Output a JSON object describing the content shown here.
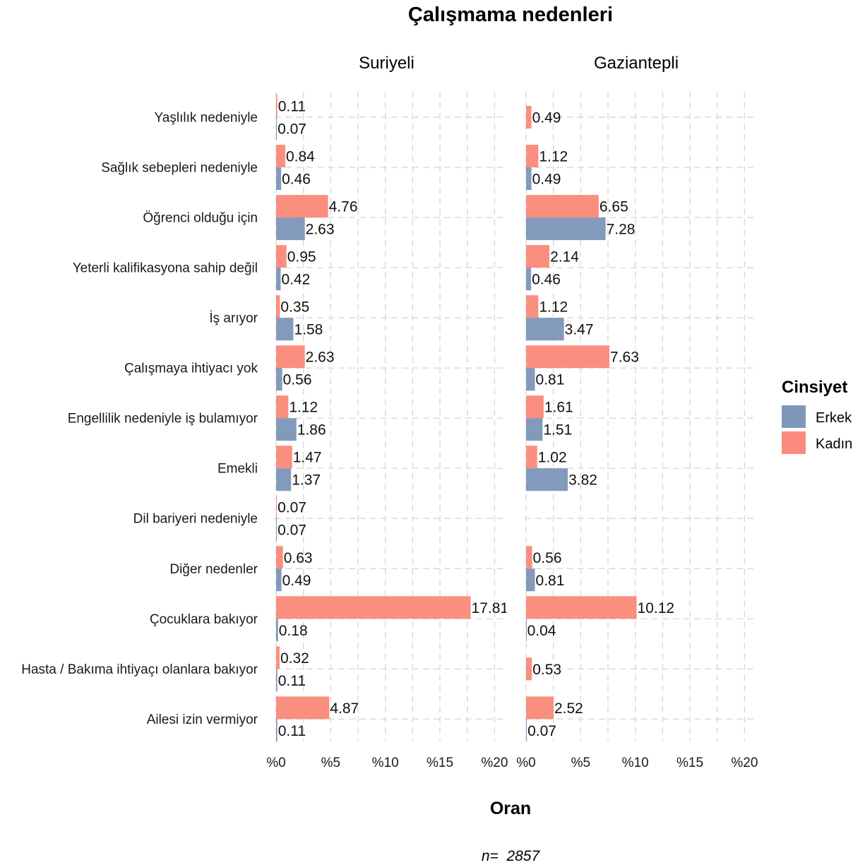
{
  "title": "Çalışmama nedenleri",
  "x_axis_title": "Oran",
  "caption": "n=  2857",
  "legend_title": "Cinsiyet",
  "legend": [
    {
      "key": "Erkek",
      "label": "Erkek",
      "color": "#7f97bb"
    },
    {
      "key": "Kadın",
      "label": "Kadın",
      "color": "#fa8b7c"
    }
  ],
  "chart_data": {
    "type": "bar",
    "orientation": "horizontal",
    "facets": [
      "Suriyeli",
      "Gaziantepli"
    ],
    "categories": [
      "Yaşlılık nedeniyle",
      "Sağlık sebepleri nedeniyle",
      "Öğrenci olduğu için",
      "Yeterli kalifikasyona sahip değil",
      "İş arıyor",
      "Çalışmaya ihtiyacı yok",
      "Engellilik nedeniyle iş bulamıyor",
      "Emekli",
      "Dil bariyeri nedeniyle",
      "Diğer nedenler",
      "Çocuklara bakıyor",
      "Hasta / Bakıma ihtiyaçı olanlara bakıyor",
      "Ailesi izin vermiyor"
    ],
    "series": [
      {
        "name": "Kadın",
        "facet": "Suriyeli",
        "values": [
          0.11,
          0.84,
          4.76,
          0.95,
          0.35,
          2.63,
          1.12,
          1.47,
          0.07,
          0.63,
          17.81,
          0.32,
          4.87
        ],
        "labels": [
          "0.11",
          "0.84",
          "4.76",
          "0.95",
          "0.35",
          "2.63",
          "1.12",
          "1.47",
          "0.07",
          "0.63",
          "17.81",
          "0.32",
          "4.87"
        ]
      },
      {
        "name": "Erkek",
        "facet": "Suriyeli",
        "values": [
          0.07,
          0.46,
          2.63,
          0.42,
          1.58,
          0.56,
          1.86,
          1.37,
          0.07,
          0.49,
          0.18,
          0.11,
          0.11
        ],
        "labels": [
          "0.07",
          "0.46",
          "2.63",
          "0.42",
          "1.58",
          "0.56",
          "1.86",
          "1.37",
          "0.07",
          "0.49",
          "0.18",
          "0.11",
          "0.11"
        ]
      },
      {
        "name": "Kadın",
        "facet": "Gaziantepli",
        "values": [
          0.49,
          1.12,
          6.65,
          2.14,
          1.12,
          7.63,
          1.61,
          1.02,
          null,
          0.56,
          10.12,
          0.53,
          2.52
        ],
        "labels": [
          "0.49",
          "1.12",
          "6.65",
          "2.14",
          "1.12",
          "7.63",
          "1.61",
          "1.02",
          null,
          "0.56",
          "10.12",
          "0.53",
          "2.52"
        ]
      },
      {
        "name": "Erkek",
        "facet": "Gaziantepli",
        "values": [
          null,
          0.49,
          7.28,
          0.46,
          3.47,
          0.81,
          1.51,
          3.82,
          null,
          0.81,
          0.04,
          null,
          0.07
        ],
        "labels": [
          null,
          "0.49",
          "7.28",
          "0.46",
          "3.47",
          "0.81",
          "1.51",
          "3.82",
          null,
          "0.81",
          "0.04",
          null,
          "0.07"
        ]
      }
    ],
    "xlim": [
      0,
      20
    ],
    "x_ticks": [
      0,
      5,
      10,
      15,
      20
    ],
    "x_tick_labels": [
      "%0",
      "%5",
      "%10",
      "%15",
      "%20"
    ],
    "xlabel": "Oran",
    "grid": true,
    "legend_position": "right"
  }
}
